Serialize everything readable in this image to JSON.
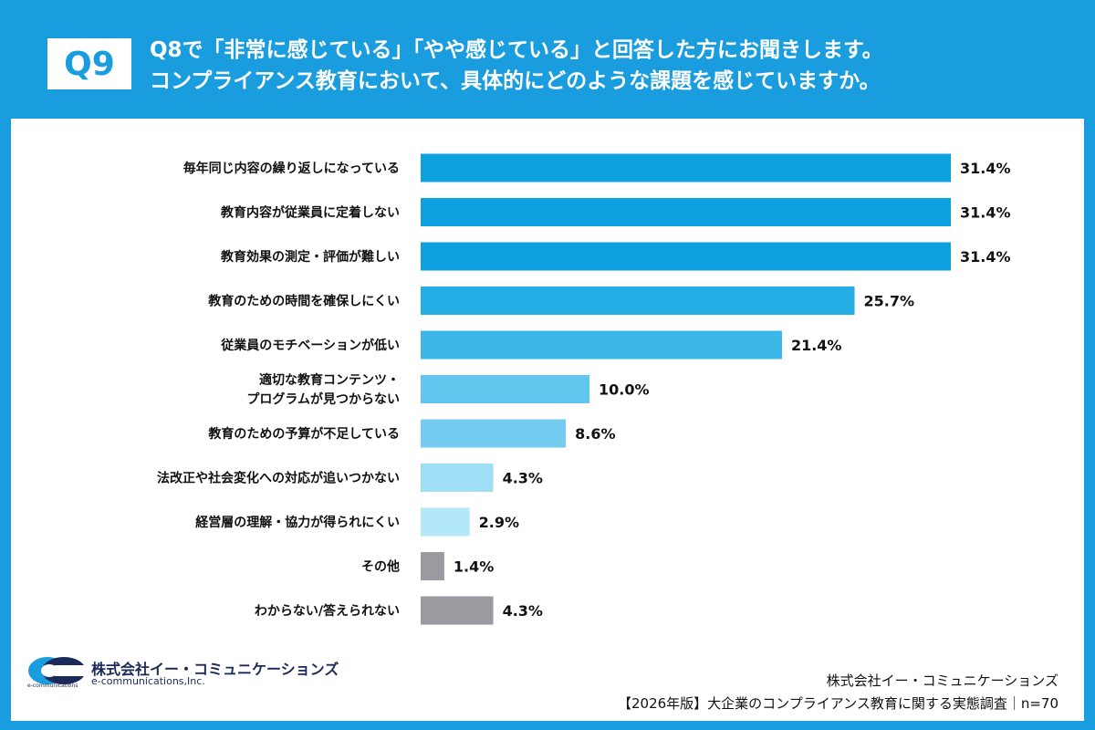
{
  "header": {
    "badge": "Q9",
    "line1": "Q8で「非常に感じている」「やや感じている」と回答した方にお聞きします。",
    "line2": "コンプライアンス教育において、具体的にどのような課題を感じていますか。"
  },
  "chart_data": {
    "type": "bar",
    "orientation": "horizontal",
    "categories": [
      [
        "毎年同じ内容の繰り返しになっている"
      ],
      [
        "教育内容が従業員に定着しない"
      ],
      [
        "教育効果の測定・評価が難しい"
      ],
      [
        "教育のための時間を確保しにくい"
      ],
      [
        "従業員のモチベーションが低い"
      ],
      [
        "適切な教育コンテンツ・",
        "プログラムが見つからない"
      ],
      [
        "教育のための予算が不足している"
      ],
      [
        "法改正や社会変化への対応が追いつかない"
      ],
      [
        "経営層の理解・協力が得られにくい"
      ],
      [
        "その他"
      ],
      [
        "わからない/答えられない"
      ]
    ],
    "values": [
      31.4,
      31.4,
      31.4,
      25.7,
      21.4,
      10.0,
      8.6,
      4.3,
      2.9,
      1.4,
      4.3
    ],
    "labels": [
      "31.4%",
      "31.4%",
      "31.4%",
      "25.7%",
      "21.4%",
      "10.0%",
      "8.6%",
      "4.3%",
      "2.9%",
      "1.4%",
      "4.3%"
    ],
    "colors": [
      "#0ea1e2",
      "#0ea1e2",
      "#0ea1e2",
      "#25ade6",
      "#3db7e8",
      "#62c6ee",
      "#74cdf0",
      "#9fdff5",
      "#b2e8f8",
      "#9a9aa0",
      "#9a9aa0"
    ],
    "xlim": [
      0,
      31.4
    ],
    "unit": "%"
  },
  "footer": {
    "company_logo_name": "株式会社イー・コミュニケーションズ",
    "company_logo_sub": "e-communications,Inc.",
    "company_logo_tiny": "e-communications",
    "source_company": "株式会社イー・コミュニケーションズ",
    "source_survey": "【2026年版】大企業のコンプライアンス教育に関する実態調査｜n=70"
  },
  "colors": {
    "brand_blue": "#1a9ddf",
    "navy": "#1b2a5a"
  }
}
